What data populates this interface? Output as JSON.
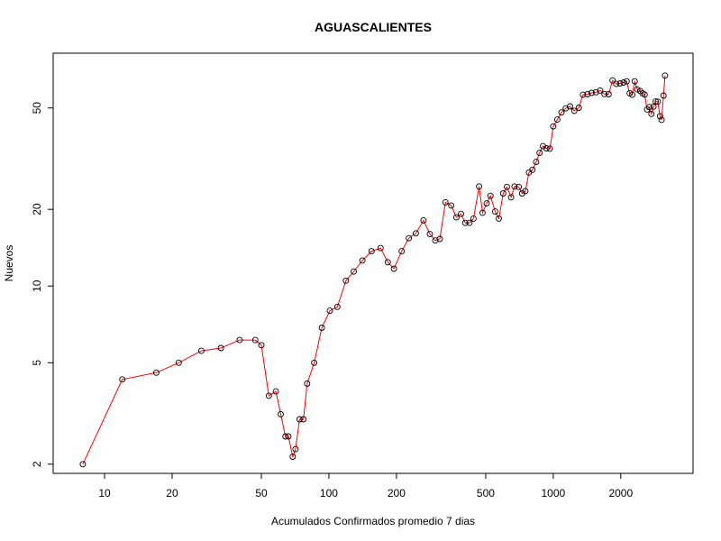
{
  "chart_data": {
    "type": "line",
    "title": "AGUASCALIENTES",
    "xlabel": "Acumulados Confirmados promedio  7  dias",
    "ylabel": "Nuevos",
    "x_scale": "log",
    "y_scale": "log",
    "xlim": [
      5.9,
      4200
    ],
    "ylim": [
      1.84,
      82
    ],
    "x_ticks": [
      10,
      20,
      50,
      100,
      200,
      500,
      1000,
      2000
    ],
    "y_ticks": [
      2,
      5,
      10,
      20,
      50
    ],
    "grid": false,
    "legend": "none",
    "colors": {
      "line": "#ff0000",
      "marker": "#000000"
    },
    "series": [
      {
        "x": [
          8,
          12,
          17,
          21.4,
          27,
          33,
          40,
          47,
          50,
          54,
          58,
          61,
          64,
          66,
          69,
          71,
          74,
          77,
          80,
          86,
          93,
          101,
          109,
          119,
          129,
          141,
          155,
          170,
          183,
          195,
          211,
          227,
          244,
          264,
          282,
          298,
          312,
          331,
          351,
          370,
          388,
          405,
          423,
          441,
          467,
          484,
          505,
          525,
          551,
          572,
          598,
          622,
          649,
          672,
          702,
          726,
          751,
          779,
          808,
          839,
          869,
          900,
          932,
          966,
          1000,
          1043,
          1088,
          1137,
          1188,
          1241,
          1300,
          1356,
          1420,
          1484,
          1550,
          1618,
          1692,
          1766,
          1838,
          1910,
          1985,
          2058,
          2125,
          2190,
          2250,
          2307,
          2370,
          2442,
          2502,
          2555,
          2621,
          2682,
          2740,
          2799,
          2860,
          2924,
          2990,
          3040,
          3100,
          3150
        ],
        "y": [
          2,
          4.3,
          4.57,
          5,
          5.57,
          5.71,
          6.14,
          6.14,
          5.86,
          3.71,
          3.86,
          3.14,
          2.57,
          2.57,
          2.14,
          2.29,
          3,
          3,
          4.14,
          5,
          6.86,
          8,
          8.29,
          10.5,
          11.4,
          12.6,
          13.7,
          14.1,
          12.4,
          11.7,
          13.7,
          15.4,
          16.1,
          18.1,
          16,
          15.1,
          15.3,
          21.3,
          20.7,
          18.6,
          19.2,
          17.7,
          17.7,
          18.4,
          24.6,
          19.4,
          21.1,
          22.6,
          19.6,
          18.4,
          23.1,
          24.5,
          22.3,
          24.6,
          24.5,
          23.1,
          23.6,
          27.9,
          28.6,
          30.7,
          33.3,
          35.4,
          34.7,
          34.6,
          42.3,
          45,
          48,
          49.8,
          50.7,
          48.7,
          50.1,
          56.3,
          56.6,
          57.3,
          57.6,
          58.5,
          56.7,
          56.6,
          64.1,
          62.1,
          62.4,
          62.9,
          63.6,
          57.1,
          56.3,
          63.6,
          59.1,
          58.3,
          57.1,
          56.4,
          49.3,
          50.4,
          47.4,
          50.6,
          53,
          52.9,
          46.4,
          44.9,
          55.9,
          67
        ]
      }
    ]
  }
}
